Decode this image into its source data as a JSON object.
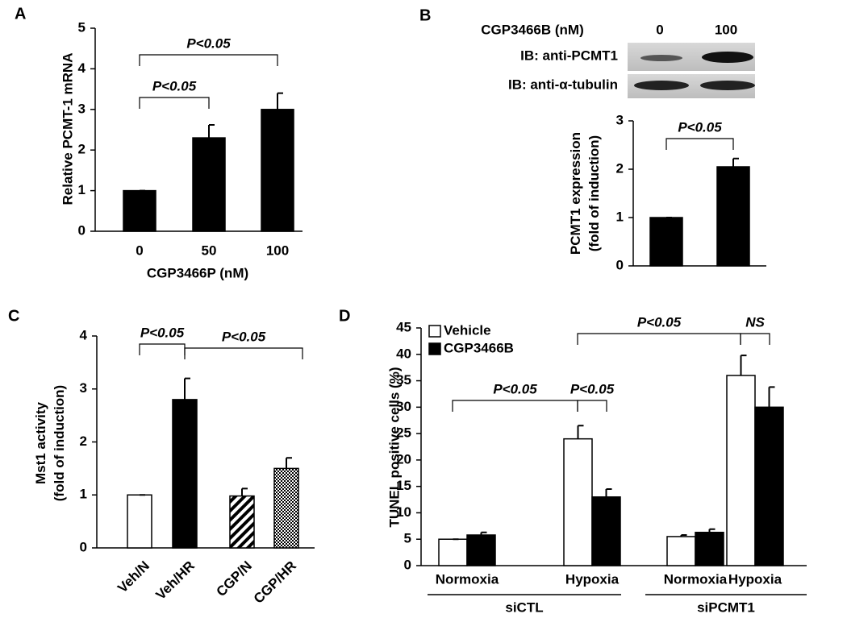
{
  "blot": {
    "header": "CGP3466B (nM)",
    "lanes": [
      "0",
      "100"
    ],
    "rows": [
      "IB: anti-PCMT1",
      "IB: anti-α-tubulin"
    ]
  },
  "chart_data": [
    {
      "type": "bar",
      "panel": "A",
      "categories": [
        "0",
        "50",
        "100"
      ],
      "values": [
        1,
        2.3,
        3.0
      ],
      "errors": [
        0,
        0.32,
        0.4
      ],
      "color": "#000000",
      "ylim": [
        0,
        5
      ],
      "yticks": [
        0,
        1,
        2,
        3,
        4,
        5
      ],
      "ylabel": [
        "Relative PCMT-1 mRNA"
      ],
      "xlabel": "CGP3466P (nM)",
      "annotations": [
        "P<0.05",
        "P<0.05"
      ]
    },
    {
      "type": "bar",
      "panel": "B",
      "categories": [
        null,
        null
      ],
      "values": [
        1,
        2.05
      ],
      "errors": [
        0,
        0.17
      ],
      "color": "#000000",
      "ylim": [
        0,
        3
      ],
      "yticks": [
        0,
        1,
        2,
        3
      ],
      "ylabel": [
        "PCMT1 expression",
        "(fold of induction)"
      ],
      "annotations": [
        "P<0.05"
      ]
    },
    {
      "type": "bar",
      "panel": "C",
      "categories": [
        "Veh/N",
        "Veh/HR",
        "CGP/N",
        "CGP/HR"
      ],
      "values": [
        1,
        2.8,
        0.98,
        1.5
      ],
      "errors": [
        0,
        0.4,
        0.14,
        0.2
      ],
      "fills": [
        "#ffffff",
        "#000000",
        "hatch",
        "dots"
      ],
      "ylim": [
        0,
        4
      ],
      "yticks": [
        0,
        1,
        2,
        3,
        4
      ],
      "ylabel": [
        "Mst1 activity",
        "(fold of induction)"
      ],
      "annotations": [
        "P<0.05",
        "P<0.05"
      ]
    },
    {
      "type": "grouped_bar",
      "panel": "D",
      "categories": [
        "Normoxia",
        "Hypoxia",
        "Normoxia",
        "Hypoxia"
      ],
      "groups": [
        "siCTL",
        "siPCMT1"
      ],
      "series": [
        {
          "name": "Vehicle",
          "color": "#ffffff",
          "values": [
            5,
            24,
            5.5,
            36
          ],
          "errors": [
            0,
            2.5,
            0.3,
            3.8
          ]
        },
        {
          "name": "CGP3466B",
          "color": "#000000",
          "values": [
            5.8,
            13,
            6.3,
            30
          ],
          "errors": [
            0.5,
            1.5,
            0.6,
            3.8
          ]
        }
      ],
      "ylim": [
        0,
        45
      ],
      "yticks": [
        0,
        5,
        10,
        15,
        20,
        25,
        30,
        35,
        40,
        45
      ],
      "ylabel": [
        "TUNEL positive cells (%)"
      ],
      "legend": "upper left",
      "annotations": [
        "P<0.05",
        "NS",
        "P<0.05",
        "P<0.05"
      ]
    }
  ]
}
